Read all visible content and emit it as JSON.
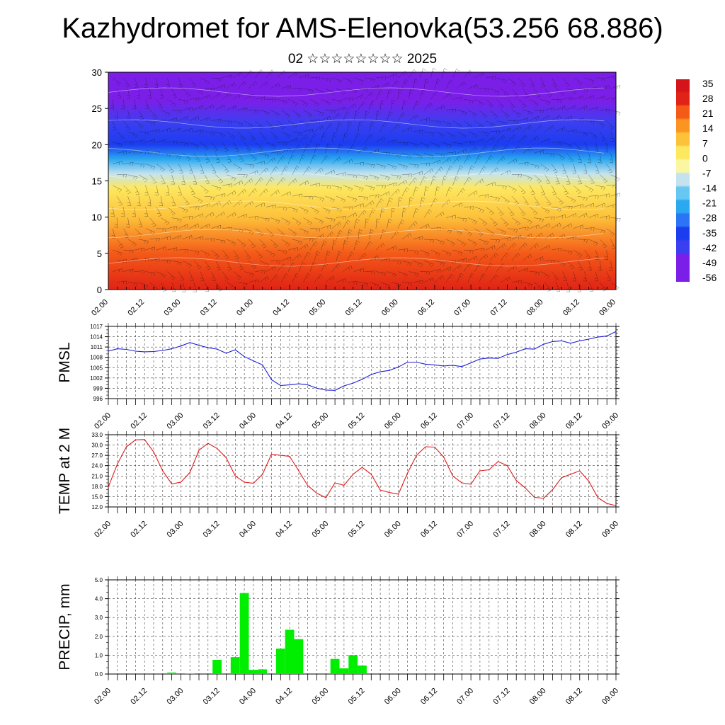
{
  "title": "Kazhydromet for AMS-Elenovka(53.256 68.886)",
  "subtitle": "02 ☆☆☆☆☆☆☆☆ 2025",
  "chart_data": [
    {
      "type": "heatmap",
      "ylim": [
        0,
        30
      ],
      "yticks": [
        "0",
        "5",
        "10",
        "15",
        "20",
        "25",
        "30"
      ],
      "x_ticks": [
        "02.00",
        "02.12",
        "03.00",
        "03.12",
        "04.00",
        "04.12",
        "05.00",
        "05.12",
        "06.00",
        "06.12",
        "07.00",
        "07.12",
        "08.00",
        "08.12",
        "09.00"
      ],
      "colorbar": {
        "labels": [
          "35",
          "28",
          "21",
          "14",
          "7",
          "0",
          "-7",
          "-14",
          "-21",
          "-28",
          "-35",
          "-42",
          "-49",
          "-56"
        ],
        "values": [
          35,
          28,
          21,
          14,
          7,
          0,
          -7,
          -14,
          -21,
          -28,
          -35,
          -42,
          -49,
          -56
        ]
      },
      "temperature_profile": [
        {
          "level": 0,
          "value": 30
        },
        {
          "level": 5,
          "value": 24
        },
        {
          "level": 10,
          "value": 14
        },
        {
          "level": 14,
          "value": 2
        },
        {
          "level": 16,
          "value": -12
        },
        {
          "level": 18,
          "value": -25
        },
        {
          "level": 20,
          "value": -38
        },
        {
          "level": 23,
          "value": -48
        },
        {
          "level": 26,
          "value": -50
        },
        {
          "level": 30,
          "value": -56
        }
      ],
      "overlay": "wind barbs and isotherms"
    },
    {
      "type": "line",
      "ylabel": "PMSL",
      "ylim": [
        996,
        1017
      ],
      "yticks": [
        "996",
        "999",
        "1002",
        "1005",
        "1008",
        "1011",
        "1014",
        "1017"
      ],
      "x_ticks": [
        "02.00",
        "02.12",
        "03.00",
        "03.12",
        "04.00",
        "04.12",
        "05.00",
        "05.12",
        "06.00",
        "06.12",
        "07.00",
        "07.12",
        "08.00",
        "08.12",
        "09.00"
      ],
      "color": "#1f1fd6",
      "series": [
        {
          "x": [
            0,
            3,
            6,
            9,
            12,
            15,
            18,
            21,
            24,
            27,
            30,
            33,
            36,
            39,
            42,
            45,
            48,
            51,
            54,
            57,
            60,
            63,
            66,
            69,
            72,
            75,
            78,
            81,
            84,
            87,
            90,
            93,
            96,
            99,
            102,
            105,
            108,
            111,
            114,
            117,
            120,
            123,
            126,
            129,
            132,
            135,
            138,
            141,
            144,
            147,
            150,
            153,
            156,
            159,
            162,
            165,
            168
          ],
          "values": [
            1009.8,
            1010.5,
            1010.3,
            1009.8,
            1009.6,
            1009.7,
            1010,
            1010.5,
            1011.3,
            1012.3,
            1011.5,
            1010.8,
            1010.4,
            1009.2,
            1010.2,
            1008.2,
            1007,
            1005.8,
            1001.5,
            999.8,
            1000,
            1000.3,
            1000,
            999,
            998.5,
            998.4,
            999.7,
            1000.5,
            1001.6,
            1003,
            1003.8,
            1004.2,
            1005.2,
            1006.6,
            1006.6,
            1006,
            1005.8,
            1005.5,
            1005.7,
            1005.3,
            1006.4,
            1007.5,
            1007.8,
            1007.7,
            1008.8,
            1009.5,
            1010.5,
            1010.4,
            1011.8,
            1012.6,
            1012.8,
            1012.1,
            1012.8,
            1013.3,
            1013.9,
            1014.2,
            1015.5
          ]
        }
      ]
    },
    {
      "type": "line",
      "ylabel": "TEMP at 2 M",
      "ylim": [
        12,
        33
      ],
      "yticks": [
        "12.0",
        "15.0",
        "18.0",
        "21.0",
        "24.0",
        "27.0",
        "30.0",
        "33.0"
      ],
      "x_ticks": [
        "02.00",
        "02.12",
        "03.00",
        "03.12",
        "04.00",
        "04.12",
        "05.00",
        "05.12",
        "06.00",
        "06.12",
        "07.00",
        "07.12",
        "08.00",
        "08.12",
        "09.00"
      ],
      "color": "#e01a1a",
      "series": [
        {
          "x": [
            0,
            3,
            6,
            9,
            12,
            15,
            18,
            21,
            24,
            27,
            30,
            33,
            36,
            39,
            42,
            45,
            48,
            51,
            54,
            57,
            60,
            63,
            66,
            69,
            72,
            75,
            78,
            81,
            84,
            87,
            90,
            93,
            96,
            99,
            102,
            105,
            108,
            111,
            114,
            117,
            120,
            123,
            126,
            129,
            132,
            135,
            138,
            141,
            144,
            147,
            150,
            153,
            156,
            159,
            162,
            165,
            168
          ],
          "values": [
            17.8,
            24.5,
            29.5,
            31.5,
            31.6,
            28,
            22.5,
            18.7,
            19.2,
            22,
            28.5,
            30.5,
            29,
            26.3,
            21,
            19.2,
            18.9,
            21.5,
            27.3,
            27,
            26.7,
            22.5,
            18.2,
            16,
            14.7,
            19,
            18.3,
            21.5,
            23.5,
            21.5,
            16.9,
            16.2,
            15.7,
            21.8,
            27,
            29.5,
            29.4,
            26.5,
            21,
            19,
            18.6,
            22.5,
            22.8,
            25.2,
            24,
            19.7,
            17.5,
            14.8,
            14.5,
            17,
            20.5,
            21.5,
            22.5,
            19.5,
            14.7,
            13,
            12.4
          ]
        }
      ]
    },
    {
      "type": "bar",
      "ylabel": "PRECIP, mm",
      "ylim": [
        0,
        5
      ],
      "yticks": [
        "0.0",
        "1.0",
        "2.0",
        "3.0",
        "4.0",
        "5.0"
      ],
      "x_ticks": [
        "02.00",
        "02.12",
        "03.00",
        "03.12",
        "04.00",
        "04.12",
        "05.00",
        "05.12",
        "06.00",
        "06.12",
        "07.00",
        "07.12",
        "08.00",
        "08.12",
        "09.00"
      ],
      "color": "#00ee00",
      "bars": [
        {
          "x": 21,
          "value": 0.08
        },
        {
          "x": 27,
          "value": 0.03
        },
        {
          "x": 36,
          "value": 0.75
        },
        {
          "x": 42,
          "value": 0.9
        },
        {
          "x": 45,
          "value": 4.3
        },
        {
          "x": 48,
          "value": 0.22
        },
        {
          "x": 51,
          "value": 0.25
        },
        {
          "x": 57,
          "value": 1.35
        },
        {
          "x": 60,
          "value": 2.35
        },
        {
          "x": 63,
          "value": 1.85
        },
        {
          "x": 75,
          "value": 0.8
        },
        {
          "x": 78,
          "value": 0.3
        },
        {
          "x": 81,
          "value": 1.0
        },
        {
          "x": 84,
          "value": 0.45
        }
      ]
    }
  ]
}
